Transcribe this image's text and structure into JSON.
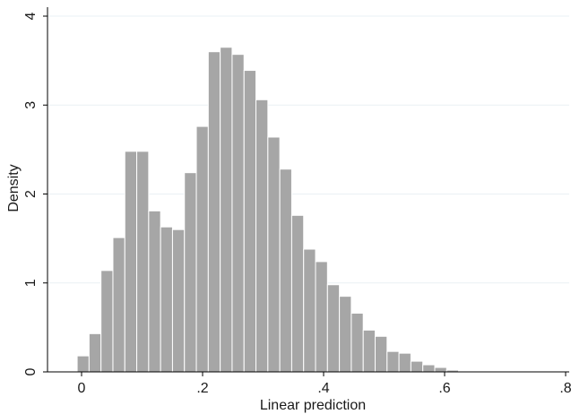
{
  "chart_data": {
    "type": "bar",
    "xlabel": "Linear prediction",
    "ylabel": "Density",
    "xlim": [
      -0.03,
      0.8
    ],
    "ylim": [
      0,
      4
    ],
    "grid": true,
    "x_ticks": [
      {
        "value": 0,
        "label": "0"
      },
      {
        "value": 0.2,
        "label": ".2"
      },
      {
        "value": 0.4,
        "label": ".4"
      },
      {
        "value": 0.6,
        "label": ".6"
      },
      {
        "value": 0.8,
        "label": ".8"
      }
    ],
    "y_ticks": [
      {
        "value": 0,
        "label": "0"
      },
      {
        "value": 1,
        "label": "1"
      },
      {
        "value": 2,
        "label": "2"
      },
      {
        "value": 3,
        "label": "3"
      },
      {
        "value": 4,
        "label": "4"
      }
    ],
    "bin_start": -0.027,
    "bin_width": 0.0197,
    "values": [
      0.01,
      0.18,
      0.43,
      1.14,
      1.51,
      2.48,
      2.48,
      1.81,
      1.63,
      1.6,
      2.24,
      2.76,
      3.6,
      3.65,
      3.57,
      3.39,
      3.06,
      2.64,
      2.28,
      1.76,
      1.38,
      1.24,
      0.98,
      0.85,
      0.66,
      0.47,
      0.4,
      0.23,
      0.21,
      0.12,
      0.08,
      0.05,
      0.02,
      0.01
    ],
    "colors": {
      "bar": "#a6a6a6",
      "bar_edge": "#ffffff",
      "grid": "#eaf0f4",
      "axis": "#000000"
    }
  }
}
